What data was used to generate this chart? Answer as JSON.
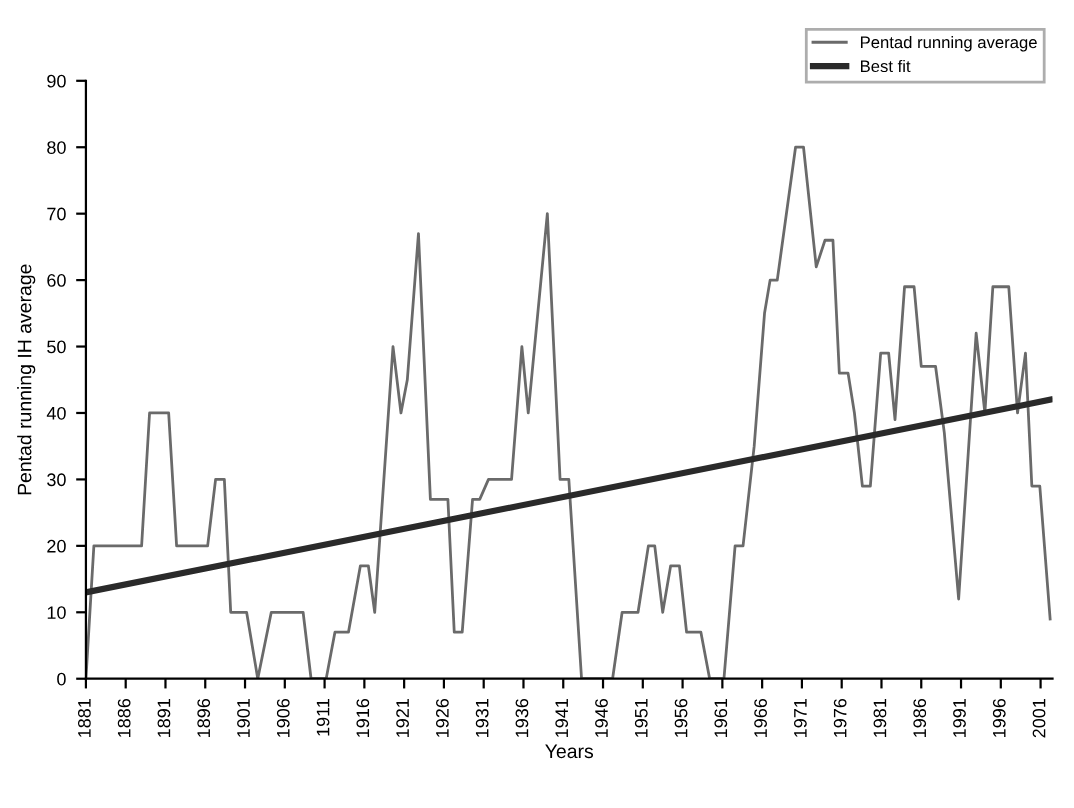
{
  "chart_data": {
    "type": "line",
    "xlabel": "Years",
    "ylabel": "Pentad running IH average",
    "xlim": [
      1881,
      2002.5
    ],
    "xticks": [
      1881,
      1886,
      1891,
      1896,
      1901,
      1906,
      1911,
      1916,
      1921,
      1926,
      1931,
      1936,
      1941,
      1946,
      1951,
      1956,
      1961,
      1966,
      1971,
      1976,
      1981,
      1986,
      1991,
      1996,
      2001
    ],
    "ylim": [
      0,
      90
    ],
    "yticks": [
      0,
      10,
      20,
      30,
      40,
      50,
      60,
      70,
      80,
      90
    ],
    "grid": false,
    "legend": "top right",
    "marker": "none",
    "series": [
      {
        "name": "Pentad running average",
        "color": "#6a6a6a",
        "line_style": "solid",
        "x": [
          1881,
          1882,
          1888,
          1889,
          1891.4,
          1892.4,
          1896.3,
          1897.3,
          1898.4,
          1899.2,
          1901.2,
          1902.6,
          1904.3,
          1908.3,
          1909.3,
          1911.2,
          1912.3,
          1914,
          1915.5,
          1916.5,
          1917.3,
          1919.6,
          1920.6,
          1921.4,
          1922.8,
          1924.3,
          1926.5,
          1927.3,
          1928.3,
          1929.6,
          1930.5,
          1931.6,
          1934.5,
          1935.8,
          1936.6,
          1939,
          1940.6,
          1941.7,
          1943.3,
          1947.2,
          1948.4,
          1950.4,
          1951.7,
          1952.5,
          1953.5,
          1954.5,
          1955.6,
          1956.5,
          1958.3,
          1959.4,
          1961.2,
          1962.6,
          1963.6,
          1965,
          1966.3,
          1967,
          1967.9,
          1970.2,
          1971.2,
          1972.8,
          1973.9,
          1974.9,
          1975.7,
          1976.8,
          1977.6,
          1978.6,
          1979.6,
          1980.9,
          1981.9,
          1982.7,
          1983.9,
          1985.1,
          1986,
          1987.8,
          1988.9,
          1990.7,
          1992.9,
          1994,
          1995,
          1997,
          1998.1,
          1999.1,
          1999.9,
          2000.9,
          2002.2
        ],
        "values": [
          0,
          20,
          20,
          40,
          40,
          20,
          20,
          30,
          30,
          10,
          10,
          0,
          10,
          10,
          0,
          0,
          7,
          7,
          17,
          17,
          10,
          50,
          40,
          45,
          67,
          27,
          27,
          7,
          7,
          27,
          27,
          30,
          30,
          50,
          40,
          70,
          30,
          30,
          0,
          0,
          10,
          10,
          20,
          20,
          10,
          17,
          17,
          7,
          7,
          0,
          0,
          20,
          20,
          35,
          55,
          60,
          60,
          80,
          80,
          62,
          66,
          66,
          46,
          46,
          40,
          29,
          29,
          49,
          49,
          39,
          59,
          59,
          47,
          47,
          37,
          12,
          52,
          40,
          59,
          59,
          40,
          49,
          29,
          29,
          9
        ]
      },
      {
        "name": "Best fit",
        "color": "#2a2a2a",
        "line_style": "solid",
        "x": [
          1881,
          2002.2
        ],
        "values": [
          13,
          42
        ]
      }
    ]
  }
}
